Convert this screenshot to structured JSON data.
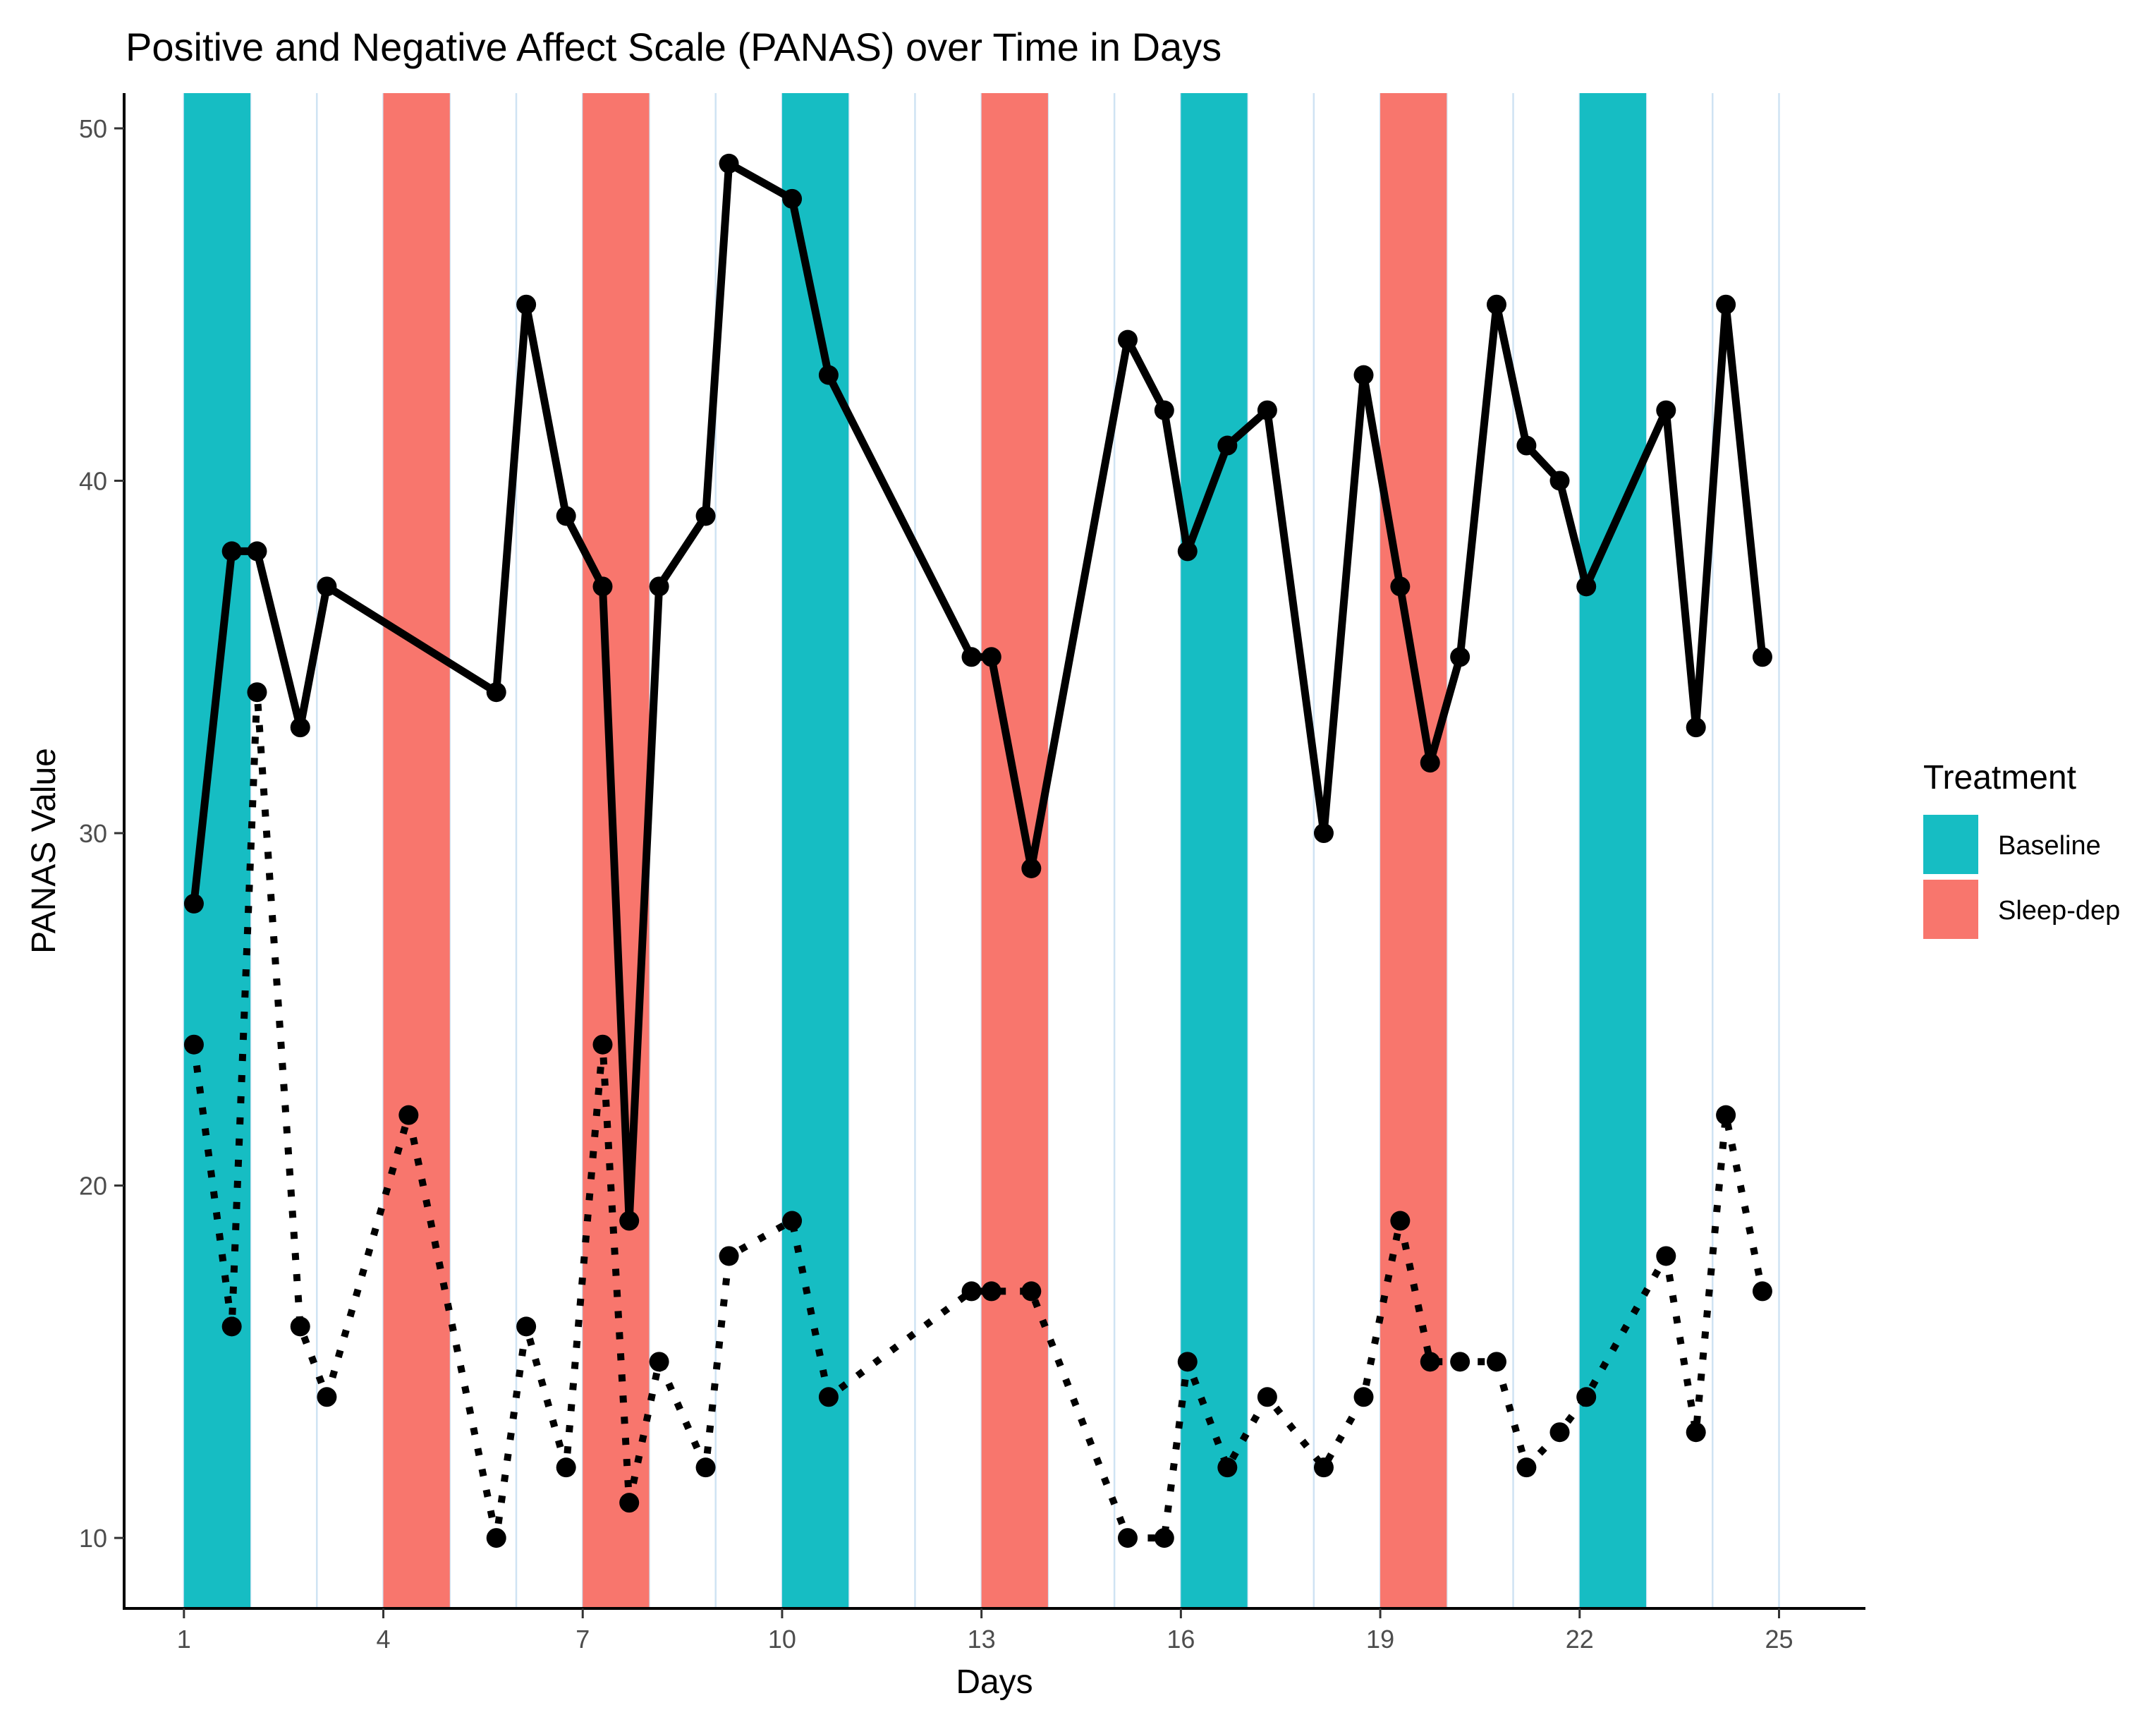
{
  "chart_data": {
    "type": "line",
    "title": "Positive and Negative Affect Scale (PANAS) over Time in Days",
    "xlabel": "Days",
    "ylabel": "PANAS Value",
    "xlim": [
      0.1,
      26.3
    ],
    "ylim": [
      8,
      51
    ],
    "x_ticks": [
      1,
      4,
      7,
      10,
      13,
      16,
      19,
      22,
      25
    ],
    "y_ticks": [
      10,
      20,
      30,
      40,
      50
    ],
    "vertical_gridlines": [
      1,
      2,
      3,
      4,
      5,
      6,
      7,
      8,
      9,
      10,
      11,
      12,
      13,
      14,
      15,
      16,
      17,
      18,
      19,
      20,
      21,
      22,
      23,
      24,
      25
    ],
    "legend": {
      "title": "Treatment",
      "position": "right",
      "entries": [
        {
          "label": "Baseline",
          "color": "#16BDC3"
        },
        {
          "label": "Sleep-dep",
          "color": "#F8766D"
        }
      ]
    },
    "bands": [
      {
        "start": 1,
        "end": 2,
        "treatment": "Baseline"
      },
      {
        "start": 4,
        "end": 5,
        "treatment": "Sleep-dep"
      },
      {
        "start": 7,
        "end": 8,
        "treatment": "Sleep-dep"
      },
      {
        "start": 10,
        "end": 11,
        "treatment": "Baseline"
      },
      {
        "start": 13,
        "end": 14,
        "treatment": "Sleep-dep"
      },
      {
        "start": 16,
        "end": 17,
        "treatment": "Baseline"
      },
      {
        "start": 19,
        "end": 20,
        "treatment": "Sleep-dep"
      },
      {
        "start": 22,
        "end": 23,
        "treatment": "Baseline"
      }
    ],
    "series": [
      {
        "style": "solid",
        "x": [
          1.15,
          1.72,
          2.1,
          2.75,
          3.15,
          5.7,
          6.15,
          6.75,
          7.3,
          7.7,
          8.15,
          8.85,
          9.2,
          10.15,
          10.7,
          12.85,
          13.15,
          13.75,
          15.2,
          15.75,
          16.1,
          16.7,
          17.3,
          18.15,
          18.75,
          19.3,
          19.75,
          20.2,
          20.75,
          21.2,
          21.7,
          22.1,
          23.3,
          23.75,
          24.2,
          24.75
        ],
        "values": [
          28,
          38,
          38,
          33,
          37,
          34,
          45,
          39,
          37,
          19,
          37,
          39,
          49,
          48,
          43,
          35,
          35,
          29,
          44,
          42,
          38,
          41,
          42,
          30,
          43,
          37,
          32,
          35,
          45,
          41,
          40,
          37,
          42,
          33,
          45,
          35
        ]
      },
      {
        "style": "dotted",
        "x": [
          1.15,
          1.72,
          2.1,
          2.75,
          3.15,
          4.38,
          5.7,
          6.15,
          6.75,
          7.3,
          7.7,
          8.15,
          8.85,
          9.2,
          10.15,
          10.7,
          12.85,
          13.15,
          13.75,
          15.2,
          15.75,
          16.1,
          16.7,
          17.3,
          18.15,
          18.75,
          19.3,
          19.75,
          20.2,
          20.75,
          21.2,
          21.7,
          22.1,
          23.3,
          23.75,
          24.2,
          24.75
        ],
        "values": [
          24,
          16,
          34,
          16,
          14,
          22,
          10,
          16,
          12,
          24,
          11,
          15,
          12,
          18,
          19,
          14,
          17,
          17,
          17,
          10,
          10,
          15,
          12,
          14,
          12,
          14,
          19,
          15,
          15,
          15,
          12,
          13,
          14,
          18,
          13,
          22,
          17
        ]
      }
    ]
  }
}
